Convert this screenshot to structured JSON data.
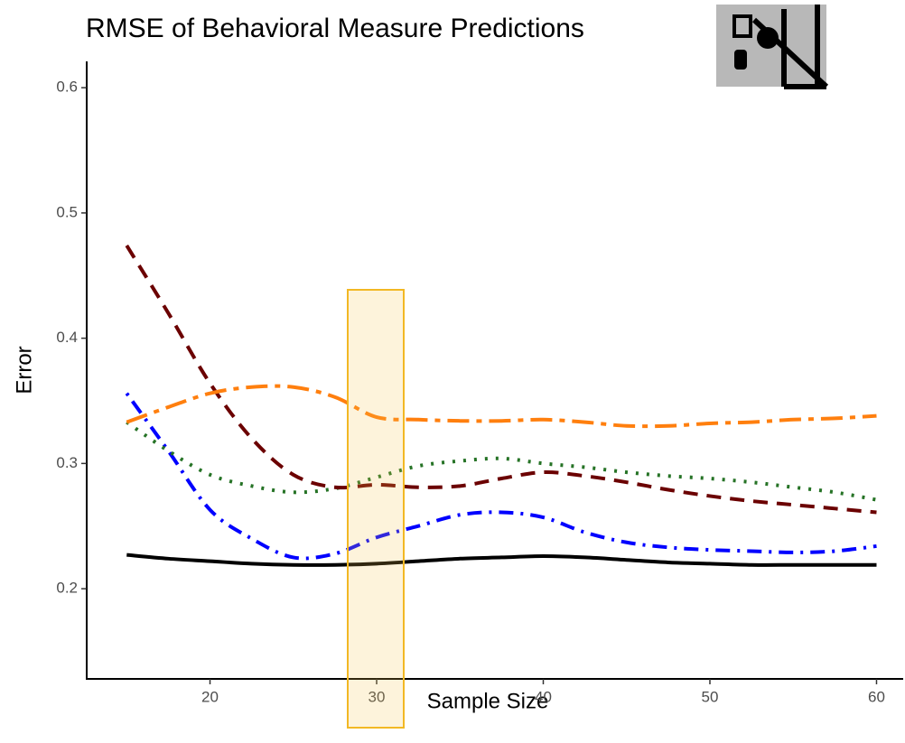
{
  "chart_data": {
    "type": "line",
    "title": "RMSE of Behavioral Measure Predictions",
    "x_label": "Sample Size",
    "y_label": "Error",
    "x": [
      15,
      17.5,
      20,
      22.5,
      25,
      27.5,
      30,
      32.5,
      35,
      37.5,
      40,
      42.5,
      45,
      47.5,
      50,
      52.5,
      55,
      57.5,
      60
    ],
    "series": [
      {
        "color": "#000000",
        "linestyle": "solid",
        "values": [
          0.227,
          0.224,
          0.222,
          0.22,
          0.219,
          0.219,
          0.22,
          0.222,
          0.224,
          0.225,
          0.226,
          0.225,
          0.223,
          0.221,
          0.22,
          0.219,
          0.219,
          0.219,
          0.219
        ]
      },
      {
        "color": "#0000ff",
        "linestyle": "dotdash",
        "values": [
          0.356,
          0.31,
          0.263,
          0.24,
          0.225,
          0.228,
          0.241,
          0.25,
          0.259,
          0.261,
          0.257,
          0.245,
          0.237,
          0.233,
          0.231,
          0.23,
          0.229,
          0.23,
          0.234
        ]
      },
      {
        "color": "#267326",
        "linestyle": "dotted",
        "values": [
          0.333,
          0.31,
          0.291,
          0.282,
          0.277,
          0.28,
          0.289,
          0.298,
          0.302,
          0.304,
          0.3,
          0.297,
          0.293,
          0.29,
          0.288,
          0.285,
          0.281,
          0.277,
          0.271
        ]
      },
      {
        "color": "#6b0000",
        "linestyle": "dashed",
        "values": [
          0.474,
          0.42,
          0.364,
          0.32,
          0.291,
          0.281,
          0.283,
          0.281,
          0.282,
          0.288,
          0.293,
          0.29,
          0.285,
          0.279,
          0.274,
          0.27,
          0.267,
          0.264,
          0.261
        ]
      },
      {
        "color": "#ff7f0e",
        "linestyle": "longdash",
        "values": [
          0.333,
          0.345,
          0.356,
          0.361,
          0.361,
          0.353,
          0.337,
          0.335,
          0.334,
          0.334,
          0.335,
          0.333,
          0.33,
          0.33,
          0.332,
          0.333,
          0.335,
          0.336,
          0.338
        ]
      }
    ],
    "xlim": [
      12.6,
      61.6
    ],
    "ylim": [
      0.128,
      0.621
    ],
    "xticks": [
      20,
      30,
      40,
      50,
      60
    ],
    "yticks": [
      0.2,
      0.3,
      0.4,
      0.5,
      0.6
    ],
    "grid": false
  }
}
